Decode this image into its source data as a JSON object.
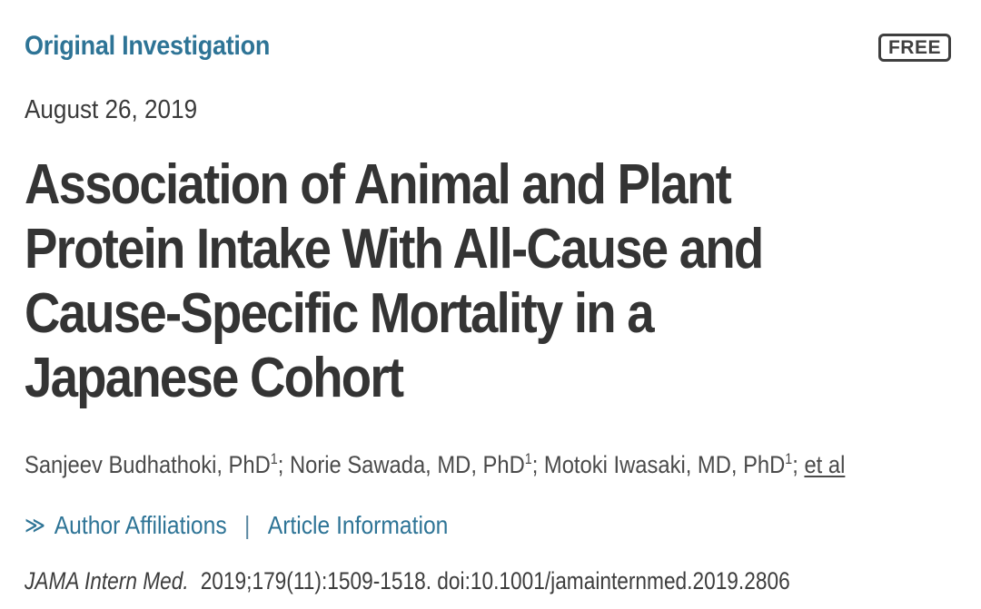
{
  "page": {
    "kicker": "Original Investigation",
    "free_label": "FREE",
    "date": "August 26, 2019"
  },
  "title": {
    "full": "Association of Animal and Plant Protein Intake With All-Cause and Cause-Specific Mortality in a Japanese Cohort",
    "lines": {
      "0": "Association of Animal and Plant",
      "1": "Protein Intake With All-Cause and",
      "2": "Cause-Specific Mortality in a",
      "3": "Japanese Cohort"
    }
  },
  "authors": {
    "list": {
      "0": {
        "name": "Sanjeev Budhathoki, PhD",
        "sup": "1"
      },
      "1": {
        "name": "Norie Sawada, MD, PhD",
        "sup": "1"
      },
      "2": {
        "name": "Motoki Iwasaki, MD, PhD",
        "sup": "1"
      }
    },
    "separator": "; ",
    "et_al": "et al"
  },
  "links": {
    "chevron_icon": "≫",
    "author_affiliations": "Author Affiliations",
    "separator": "|",
    "article_information": "Article Information"
  },
  "citation": {
    "journal": "JAMA Intern Med.",
    "rest": "2019;179(11):1509-1518. doi:10.1001/jamainternmed.2019.2806"
  },
  "colors": {
    "accent_blue": "#2e7496",
    "title_gray": "#343434"
  }
}
